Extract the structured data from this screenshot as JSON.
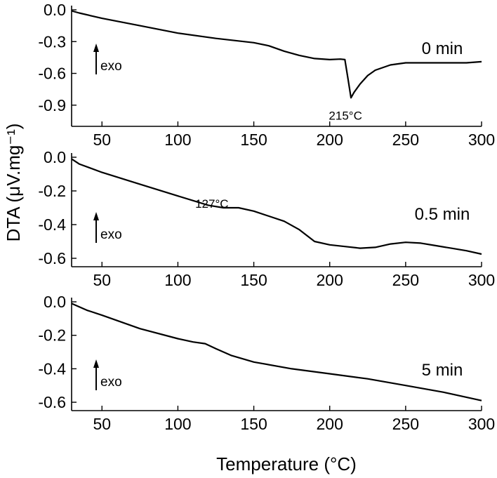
{
  "chart_data": {
    "type": "line",
    "xlabel": "Temperature (°C)",
    "ylabel": "DTA (μV.mg⁻¹)",
    "xlim": [
      30,
      300
    ],
    "xticks": [
      50,
      100,
      150,
      200,
      250,
      300
    ],
    "grid": false,
    "panels": [
      {
        "label": "0 min",
        "ylim": [
          -1.1,
          0.0
        ],
        "yticks": [
          0.0,
          -0.3,
          -0.6,
          -0.9
        ],
        "ytick_labels": [
          "0.0",
          "-0.3",
          "-0.6",
          "-0.9"
        ],
        "exo_label": "exo",
        "annotation": {
          "text": "215°C",
          "x": 215,
          "y": -0.85
        },
        "series": [
          {
            "x": [
              30,
              35,
              50,
              75,
              100,
              125,
              150,
              160,
              170,
              180,
              190,
              200,
              207,
              210,
              212,
              214,
              216,
              220,
              225,
              230,
              240,
              250,
              270,
              290,
              300
            ],
            "y": [
              -0.01,
              -0.03,
              -0.08,
              -0.15,
              -0.22,
              -0.27,
              -0.31,
              -0.34,
              -0.39,
              -0.43,
              -0.46,
              -0.47,
              -0.465,
              -0.47,
              -0.65,
              -0.83,
              -0.78,
              -0.7,
              -0.62,
              -0.57,
              -0.52,
              -0.5,
              -0.5,
              -0.5,
              -0.49
            ]
          }
        ]
      },
      {
        "label": "0.5 min",
        "ylim": [
          -0.65,
          0.0
        ],
        "yticks": [
          0.0,
          -0.2,
          -0.4,
          -0.6
        ],
        "ytick_labels": [
          "0.0",
          "-0.2",
          "-0.4",
          "-0.6"
        ],
        "exo_label": "exo",
        "annotation": {
          "text": "127°C",
          "x": 127,
          "y": -0.35
        },
        "series": [
          {
            "x": [
              30,
              35,
              50,
              75,
              100,
              120,
              130,
              140,
              150,
              160,
              170,
              180,
              190,
              200,
              210,
              220,
              230,
              240,
              250,
              260,
              270,
              280,
              290,
              300
            ],
            "y": [
              -0.01,
              -0.04,
              -0.09,
              -0.16,
              -0.23,
              -0.285,
              -0.3,
              -0.3,
              -0.32,
              -0.35,
              -0.38,
              -0.43,
              -0.5,
              -0.52,
              -0.53,
              -0.54,
              -0.535,
              -0.515,
              -0.505,
              -0.51,
              -0.525,
              -0.54,
              -0.555,
              -0.575
            ]
          }
        ]
      },
      {
        "label": "5 min",
        "ylim": [
          -0.65,
          0.0
        ],
        "yticks": [
          0.0,
          -0.2,
          -0.4,
          -0.6
        ],
        "ytick_labels": [
          "0.0",
          "-0.2",
          "-0.4",
          "-0.6"
        ],
        "exo_label": "exo",
        "series": [
          {
            "x": [
              30,
              40,
              50,
              75,
              100,
              110,
              118,
              125,
              135,
              150,
              175,
              200,
              225,
              250,
              275,
              300
            ],
            "y": [
              -0.01,
              -0.05,
              -0.08,
              -0.16,
              -0.22,
              -0.24,
              -0.25,
              -0.28,
              -0.32,
              -0.36,
              -0.4,
              -0.43,
              -0.46,
              -0.5,
              -0.54,
              -0.59
            ]
          }
        ]
      }
    ]
  }
}
